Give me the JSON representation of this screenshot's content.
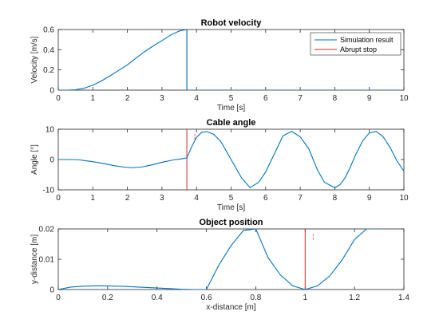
{
  "chart_data": [
    {
      "type": "line",
      "title": "Robot velocity",
      "xlabel": "Time [s]",
      "ylabel": "Velocity [m/s]",
      "xlim": [
        0,
        10
      ],
      "ylim": [
        0,
        0.6
      ],
      "xticks": [
        "0",
        "1",
        "2",
        "3",
        "4",
        "5",
        "6",
        "7",
        "8",
        "9",
        "10"
      ],
      "yticks": [
        "0",
        "0.2",
        "0.4",
        "0.6"
      ],
      "grid": false,
      "legend_position": "top-right",
      "legend": [
        {
          "name": "Simulation result",
          "color": "#0072BD"
        },
        {
          "name": "Abrupt stop",
          "color": "#D62728"
        }
      ],
      "series": [
        {
          "name": "Simulation result",
          "color": "#0072BD",
          "x": [
            0,
            0.3,
            0.5,
            0.75,
            1,
            1.25,
            1.5,
            1.75,
            2,
            2.25,
            2.5,
            2.75,
            3,
            3.25,
            3.5,
            3.65,
            3.72,
            3.72,
            4,
            5,
            6,
            7,
            8,
            9,
            10
          ],
          "y": [
            0,
            0,
            0.004,
            0.019,
            0.049,
            0.091,
            0.142,
            0.196,
            0.25,
            0.317,
            0.381,
            0.438,
            0.49,
            0.545,
            0.585,
            0.596,
            0.6,
            0,
            0,
            0,
            0,
            0,
            0,
            0,
            0
          ]
        }
      ],
      "stop_x": 3.72
    },
    {
      "type": "line",
      "title": "Cable angle",
      "xlabel": "Time [s]",
      "ylabel": "Angle [°]",
      "xlim": [
        0,
        10
      ],
      "ylim": [
        -10,
        10
      ],
      "xticks": [
        "0",
        "1",
        "2",
        "3",
        "4",
        "5",
        "6",
        "7",
        "8",
        "9",
        "10"
      ],
      "yticks": [
        "-10",
        "0",
        "10"
      ],
      "grid": false,
      "annotation": "¦",
      "series": [
        {
          "name": "Simulation result",
          "color": "#0072BD",
          "x": [
            0,
            0.4,
            0.6,
            0.8,
            1,
            1.3,
            1.6,
            1.9,
            2.15,
            2.4,
            2.7,
            3,
            3.3,
            3.72,
            3.85,
            4,
            4.15,
            4.3,
            4.5,
            4.7,
            5,
            5.3,
            5.55,
            5.8,
            6,
            6.3,
            6.5,
            6.75,
            7,
            7.25,
            7.5,
            7.7,
            8,
            8.15,
            8.3,
            8.45,
            8.6,
            8.8,
            9,
            9.2,
            9.4,
            9.6,
            9.8,
            10
          ],
          "y": [
            0,
            0,
            -0.1,
            -0.4,
            -0.7,
            -1.3,
            -2,
            -2.5,
            -2.7,
            -2.5,
            -1.8,
            -0.9,
            -0.2,
            0.5,
            4,
            7.3,
            9,
            9.2,
            8.3,
            6,
            0,
            -6,
            -9.3,
            -7.5,
            -4.1,
            3,
            7.8,
            9.3,
            7.5,
            3.5,
            -3.5,
            -7.5,
            -9.3,
            -8.3,
            -6,
            -2.5,
            1.5,
            6,
            8.8,
            9.3,
            7.5,
            4,
            -0.5,
            -3.8
          ]
        }
      ],
      "stop_x": 3.72
    },
    {
      "type": "line",
      "title": "Object position",
      "xlabel": "x-distance [m]",
      "ylabel": "y-distance [m]",
      "xlim": [
        0,
        1.4
      ],
      "ylim": [
        0,
        0.02
      ],
      "xticks": [
        "0",
        "0.2",
        "0.4",
        "0.6",
        "0.8",
        "1",
        "1.2",
        "1.4"
      ],
      "yticks": [
        "0",
        "0.01",
        "0.02"
      ],
      "grid": false,
      "annotation": "¦",
      "series": [
        {
          "name": "Simulation result",
          "color": "#0072BD",
          "x": [
            0,
            0.05,
            0.1,
            0.15,
            0.2,
            0.25,
            0.3,
            0.35,
            0.4,
            0.45,
            0.5,
            0.55,
            0.6,
            0.65,
            0.7,
            0.75,
            0.8,
            0.85,
            0.9,
            0.95,
            1,
            1.05,
            1.1,
            1.15,
            1.2,
            1.25,
            1.3
          ],
          "y": [
            0,
            0.0008,
            0.0011,
            0.0012,
            0.0012,
            0.0011,
            0.0009,
            0.0007,
            0.0005,
            0.0003,
            0.0001,
            0,
            0,
            0.008,
            0.0145,
            0.0195,
            0.02,
            0.0105,
            0.0048,
            0.0012,
            0,
            0.0012,
            0.0045,
            0.0098,
            0.0165,
            0.0201,
            0.02
          ]
        }
      ],
      "stop_x": 1.0
    }
  ]
}
